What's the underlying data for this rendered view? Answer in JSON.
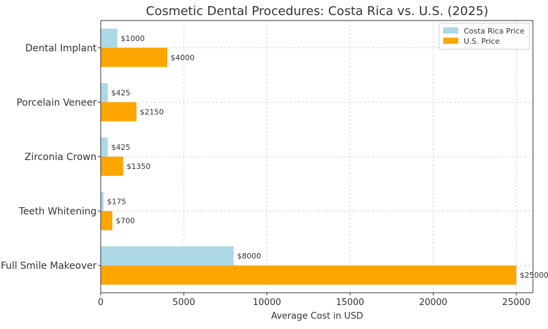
{
  "chart_data": {
    "type": "bar",
    "orientation": "horizontal",
    "title": "Cosmetic Dental Procedures: Costa Rica vs. U.S. (2025)",
    "xlabel": "Average Cost in USD",
    "ylabel": "",
    "xlim": [
      0,
      26000
    ],
    "xticks": [
      0,
      5000,
      10000,
      15000,
      20000,
      25000
    ],
    "grid": true,
    "legend_position": "top-right",
    "categories": [
      "Dental Implant",
      "Porcelain Veneer",
      "Zirconia Crown",
      "Teeth Whitening",
      "Full Smile Makeover"
    ],
    "series": [
      {
        "name": "Costa Rica Price",
        "color": "#add8e6",
        "values": [
          1000,
          425,
          425,
          175,
          8000
        ],
        "labels": [
          "$1000",
          "$425",
          "$425",
          "$175",
          "$8000"
        ]
      },
      {
        "name": "U.S. Price",
        "color": "#ffa500",
        "values": [
          4000,
          2150,
          1350,
          700,
          25000
        ],
        "labels": [
          "$4000",
          "$2150",
          "$1350",
          "$700",
          "$25000"
        ]
      }
    ]
  }
}
